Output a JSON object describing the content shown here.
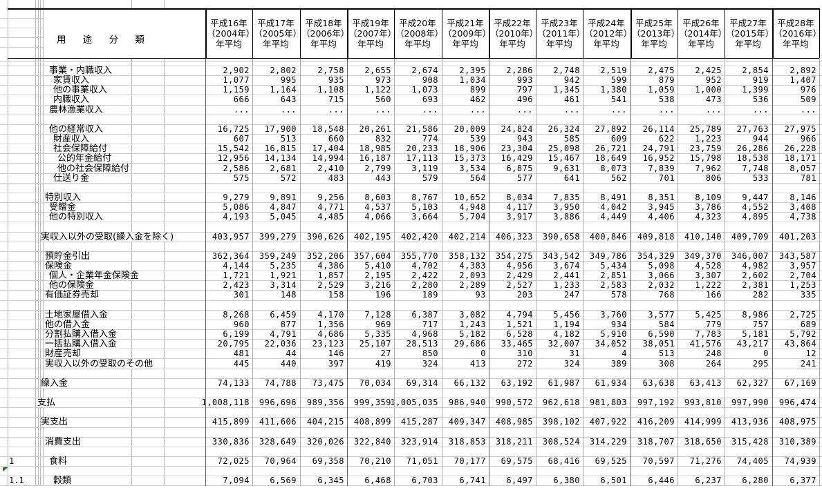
{
  "table": {
    "classification_header": "用 途 分 類",
    "columns": [
      {
        "era": "平成16年",
        "western": "（2004年）",
        "period": "年平均"
      },
      {
        "era": "平成17年",
        "western": "（2005年）",
        "period": "年平均"
      },
      {
        "era": "平成18年",
        "western": "（2006年）",
        "period": "年平均"
      },
      {
        "era": "平成19年",
        "western": "（2007年）",
        "period": "年平均"
      },
      {
        "era": "平成20年",
        "western": "（2008年）",
        "period": "年平均"
      },
      {
        "era": "平成21年",
        "western": "（2009年）",
        "period": "年平均"
      },
      {
        "era": "平成22年",
        "western": "（2010年）",
        "period": "年平均"
      },
      {
        "era": "平成23年",
        "western": "（2011年）",
        "period": "年平均"
      },
      {
        "era": "平成24年",
        "western": "（2012年）",
        "period": "年平均"
      },
      {
        "era": "平成25年",
        "western": "（2013年）",
        "period": "年平均"
      },
      {
        "era": "平成26年",
        "western": "（2014年）",
        "period": "年平均"
      },
      {
        "era": "平成27年",
        "western": "（2015年）",
        "period": "年平均"
      },
      {
        "era": "平成28年",
        "western": "（2016年）",
        "period": "年平均"
      }
    ],
    "missing_value_symbol": "...",
    "colors": {
      "grid_light": "#cccccc",
      "grid_vertical_light": "#b5b5b5",
      "grid_vertical_dark": "#606060",
      "grid_vertical_mid": "#a8a8a8",
      "header_border": "#000000",
      "error_indicator_green": "#1f7a1f",
      "text": "#000000",
      "background": "#ffffff"
    },
    "rows": [
      {
        "label": "事業・内職収入",
        "level": 3,
        "values": [
          "2,902",
          "2,802",
          "2,758",
          "2,655",
          "2,674",
          "2,395",
          "2,286",
          "2,748",
          "2,519",
          "2,475",
          "2,425",
          "2,854",
          "2,892"
        ]
      },
      {
        "label": "家賃収入",
        "level": 4,
        "values": [
          "1,077",
          "995",
          "935",
          "973",
          "908",
          "1,034",
          "993",
          "942",
          "599",
          "879",
          "952",
          "919",
          "1,407"
        ]
      },
      {
        "label": "他の事業収入",
        "level": 4,
        "values": [
          "1,159",
          "1,164",
          "1,108",
          "1,122",
          "1,073",
          "899",
          "797",
          "1,345",
          "1,380",
          "1,059",
          "1,000",
          "1,399",
          "976"
        ]
      },
      {
        "label": "内職収入",
        "level": 4,
        "values": [
          "666",
          "643",
          "715",
          "560",
          "693",
          "462",
          "496",
          "461",
          "541",
          "538",
          "473",
          "536",
          "509"
        ]
      },
      {
        "label": "農林漁業収入",
        "level": 3,
        "values": [
          "...",
          "...",
          "...",
          "...",
          "...",
          "...",
          "...",
          "...",
          "...",
          "...",
          "...",
          "...",
          "..."
        ]
      },
      {
        "blank": true
      },
      {
        "label": "他の経常収入",
        "level": 3,
        "values": [
          "16,725",
          "17,900",
          "18,548",
          "20,261",
          "21,586",
          "20,009",
          "24,824",
          "26,324",
          "27,892",
          "26,114",
          "25,789",
          "27,763",
          "27,975"
        ]
      },
      {
        "label": "財産収入",
        "level": 4,
        "values": [
          "607",
          "513",
          "660",
          "832",
          "774",
          "539",
          "943",
          "585",
          "609",
          "622",
          "1,223",
          "944",
          "966"
        ]
      },
      {
        "label": "社会保障給付",
        "level": 4,
        "values": [
          "15,542",
          "16,815",
          "17,404",
          "18,985",
          "20,233",
          "18,906",
          "23,304",
          "25,098",
          "26,721",
          "24,791",
          "23,759",
          "26,286",
          "26,228"
        ]
      },
      {
        "label": "公的年金給付",
        "level": 5,
        "values": [
          "12,956",
          "14,134",
          "14,994",
          "16,187",
          "17,113",
          "15,373",
          "16,429",
          "15,467",
          "18,649",
          "16,952",
          "15,798",
          "18,538",
          "18,171"
        ]
      },
      {
        "label": "他の社会保障給付",
        "level": 5,
        "values": [
          "2,586",
          "2,681",
          "2,410",
          "2,799",
          "3,119",
          "3,534",
          "6,875",
          "9,631",
          "8,073",
          "7,839",
          "7,962",
          "7,748",
          "8,057"
        ]
      },
      {
        "label": "仕送り金",
        "level": 4,
        "values": [
          "575",
          "572",
          "483",
          "443",
          "579",
          "564",
          "577",
          "641",
          "562",
          "701",
          "806",
          "533",
          "781"
        ]
      },
      {
        "blank": true
      },
      {
        "label": "特別収入",
        "level": 2,
        "values": [
          "9,279",
          "9,891",
          "9,256",
          "8,603",
          "8,767",
          "10,652",
          "8,034",
          "7,835",
          "8,491",
          "8,351",
          "8,109",
          "9,447",
          "8,146"
        ]
      },
      {
        "label": "受贈金",
        "level": 3,
        "values": [
          "5,086",
          "4,847",
          "4,771",
          "4,537",
          "5,103",
          "4,948",
          "4,117",
          "3,950",
          "4,042",
          "3,945",
          "3,786",
          "4,552",
          "3,408"
        ]
      },
      {
        "label": "他の特別収入",
        "level": 3,
        "values": [
          "4,193",
          "5,045",
          "4,485",
          "4,066",
          "3,664",
          "5,704",
          "3,917",
          "3,886",
          "4,449",
          "4,406",
          "4,323",
          "4,895",
          "4,738"
        ]
      },
      {
        "blank": true
      },
      {
        "label": "実収入以外の受取(繰入金を除く)",
        "level": 1,
        "values": [
          "403,957",
          "399,279",
          "390,626",
          "402,195",
          "402,420",
          "402,214",
          "406,323",
          "390,658",
          "400,846",
          "409,818",
          "410,140",
          "409,709",
          "401,203"
        ]
      },
      {
        "blank": true
      },
      {
        "label": "預貯金引出",
        "level": 2,
        "values": [
          "362,364",
          "359,249",
          "352,206",
          "357,604",
          "355,770",
          "358,132",
          "354,275",
          "343,542",
          "349,786",
          "354,329",
          "349,370",
          "346,007",
          "343,587"
        ]
      },
      {
        "label": "保険金",
        "level": 2,
        "values": [
          "4,144",
          "5,235",
          "4,386",
          "5,410",
          "4,702",
          "4,383",
          "4,956",
          "3,674",
          "5,434",
          "5,098",
          "4,528",
          "4,982",
          "3,957"
        ]
      },
      {
        "label": "個人・企業年金保険金",
        "level": 3,
        "values": [
          "1,721",
          "1,921",
          "1,857",
          "2,195",
          "2,422",
          "2,093",
          "2,429",
          "2,441",
          "2,851",
          "3,066",
          "3,307",
          "2,602",
          "2,704"
        ]
      },
      {
        "label": "他の保険金",
        "level": 3,
        "values": [
          "2,423",
          "3,314",
          "2,529",
          "3,216",
          "2,280",
          "2,289",
          "2,527",
          "1,233",
          "2,583",
          "2,032",
          "1,222",
          "2,381",
          "1,253"
        ]
      },
      {
        "label": "有価証券売却",
        "level": 2,
        "values": [
          "301",
          "148",
          "158",
          "196",
          "189",
          "93",
          "203",
          "247",
          "578",
          "768",
          "166",
          "282",
          "335"
        ]
      },
      {
        "blank": true
      },
      {
        "label": "土地家屋借入金",
        "level": 2,
        "values": [
          "8,268",
          "6,459",
          "4,170",
          "7,128",
          "6,387",
          "3,082",
          "4,794",
          "5,456",
          "3,760",
          "3,577",
          "5,425",
          "8,986",
          "2,725"
        ]
      },
      {
        "label": "他の借入金",
        "level": 2,
        "values": [
          "960",
          "877",
          "1,356",
          "969",
          "717",
          "1,243",
          "1,521",
          "1,194",
          "934",
          "584",
          "779",
          "757",
          "689"
        ]
      },
      {
        "label": "分割払購入借入金",
        "level": 2,
        "values": [
          "6,199",
          "4,791",
          "4,686",
          "5,335",
          "4,968",
          "5,182",
          "6,528",
          "4,182",
          "5,910",
          "6,590",
          "7,783",
          "5,181",
          "5,792"
        ]
      },
      {
        "label": "一括払購入借入金",
        "level": 2,
        "values": [
          "20,795",
          "22,036",
          "23,123",
          "25,107",
          "28,513",
          "29,686",
          "33,465",
          "32,007",
          "34,052",
          "38,051",
          "41,576",
          "43,217",
          "43,864"
        ]
      },
      {
        "label": "財産売却",
        "level": 2,
        "values": [
          "481",
          "44",
          "146",
          "27",
          "850",
          "0",
          "310",
          "31",
          "4",
          "513",
          "248",
          "0",
          "12"
        ]
      },
      {
        "label": "実収入以外の受取のその他",
        "level": 2,
        "values": [
          "445",
          "440",
          "397",
          "419",
          "324",
          "413",
          "272",
          "324",
          "389",
          "308",
          "264",
          "295",
          "241"
        ]
      },
      {
        "blank": true
      },
      {
        "label": "繰入金",
        "level": 1,
        "values": [
          "74,133",
          "74,788",
          "73,475",
          "70,034",
          "69,314",
          "66,132",
          "63,192",
          "61,987",
          "61,934",
          "63,638",
          "63,413",
          "62,327",
          "67,169"
        ]
      },
      {
        "blank": true
      },
      {
        "label": "支払",
        "level": 0,
        "values": [
          "1,008,118",
          "996,696",
          "989,356",
          "999,359",
          "1,005,035",
          "986,940",
          "990,572",
          "962,618",
          "981,803",
          "997,192",
          "993,810",
          "997,990",
          "996,474"
        ]
      },
      {
        "blank": true
      },
      {
        "label": "実支出",
        "level": 1,
        "values": [
          "415,899",
          "411,606",
          "404,215",
          "408,899",
          "415,287",
          "409,347",
          "408,985",
          "398,102",
          "407,922",
          "416,209",
          "414,999",
          "413,936",
          "408,975"
        ]
      },
      {
        "blank": true
      },
      {
        "label": "消費支出",
        "level": 2,
        "values": [
          "330,836",
          "328,649",
          "320,026",
          "322,840",
          "323,914",
          "318,853",
          "318,211",
          "308,524",
          "314,229",
          "318,707",
          "318,650",
          "315,428",
          "310,389"
        ]
      },
      {
        "blank": true
      },
      {
        "num": "1",
        "label": "食料",
        "level": 3,
        "values": [
          "72,025",
          "70,964",
          "69,358",
          "70,210",
          "71,051",
          "70,177",
          "69,575",
          "68,416",
          "69,525",
          "70,597",
          "71,276",
          "74,405",
          "74,939"
        ]
      },
      {
        "blank": true,
        "marker": "error-indicator-triangle"
      },
      {
        "num": "1.1",
        "label": "穀類",
        "level": 4,
        "values": [
          "7,094",
          "6,569",
          "6,345",
          "6,468",
          "6,703",
          "6,741",
          "6,497",
          "6,380",
          "6,501",
          "6,446",
          "6,237",
          "6,280",
          "6,377"
        ]
      }
    ]
  }
}
